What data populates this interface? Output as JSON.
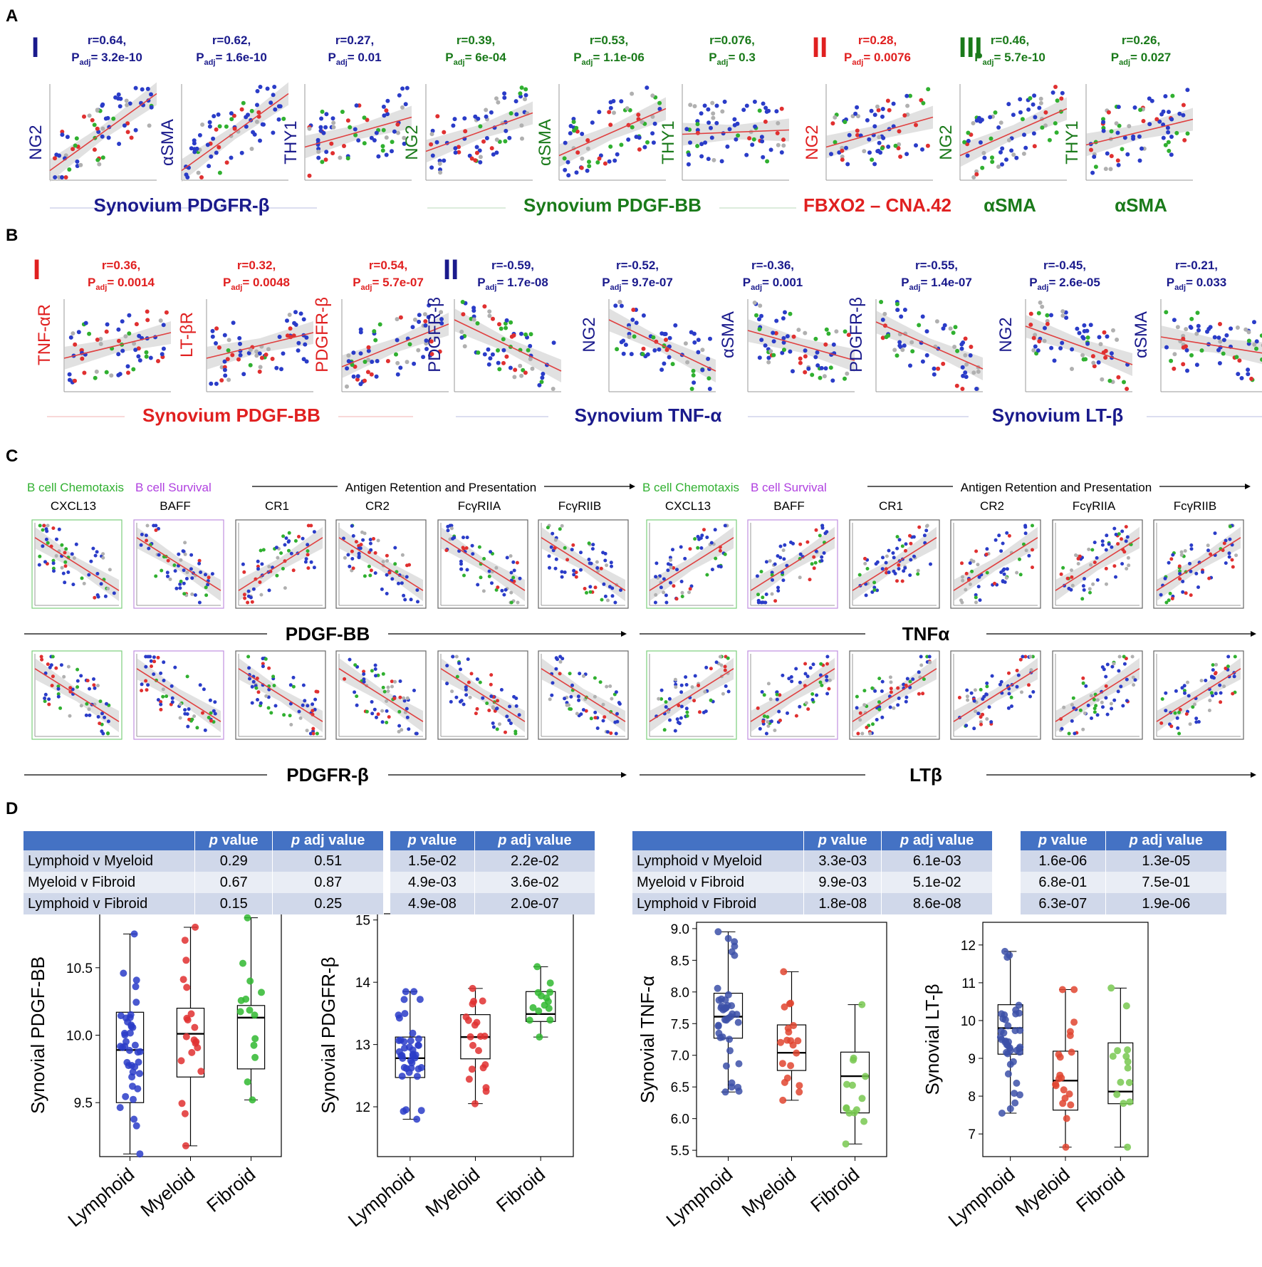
{
  "panel_labels": [
    "A",
    "B",
    "C",
    "D"
  ],
  "panelA": {
    "groups": [
      {
        "roman": "I",
        "color": "#1a1a8c",
        "xlabel": "Synovium PDGFR-β",
        "xlabel_color": "#1a1a8c",
        "plots": [
          {
            "ylabel": "NG2",
            "r": "r=0.64,",
            "padj": "3.2e-10",
            "color": "#1a1a8c"
          },
          {
            "ylabel": "αSMA",
            "r": "r=0.62,",
            "padj": "1.6e-10",
            "color": "#1a1a8c"
          },
          {
            "ylabel": "THY1",
            "r": "r=0.27,",
            "padj": "0.01",
            "color": "#1a1a8c"
          }
        ]
      },
      {
        "roman": "",
        "color": "#1a7a1a",
        "xlabel": "Synovium PDGF-BB",
        "xlabel_color": "#1a7a1a",
        "plots": [
          {
            "ylabel": "NG2",
            "r": "r=0.39,",
            "padj": "6e-04",
            "color": "#1a7a1a"
          },
          {
            "ylabel": "αSMA",
            "r": "r=0.53,",
            "padj": "1.1e-06",
            "color": "#1a7a1a"
          },
          {
            "ylabel": "THY1",
            "r": "r=0.076,",
            "padj": "0.3",
            "color": "#1a7a1a"
          }
        ]
      },
      {
        "roman": "II",
        "color": "#e02020",
        "xlabel": "FBXO2 – CNA.42",
        "xlabel_color": "#e02020",
        "plots": [
          {
            "ylabel": "NG2",
            "r": "r=0.28,",
            "padj": "0.0076",
            "color": "#e02020"
          }
        ]
      },
      {
        "roman": "III",
        "color": "#1a7a1a",
        "xlabel": "αSMA",
        "xlabel_color": "#1a7a1a",
        "plots": [
          {
            "ylabel": "NG2",
            "r": "r=0.46,",
            "padj": "5.7e-10",
            "color": "#1a7a1a"
          },
          {
            "ylabel": "THY1",
            "r": "r=0.26,",
            "padj": "0.027",
            "color": "#1a7a1a"
          }
        ]
      }
    ],
    "extra_xlabel": "αSMA"
  },
  "panelB": {
    "groups": [
      {
        "roman": "I",
        "color": "#e02020",
        "xlabel": "Synovium PDGF-BB",
        "plots": [
          {
            "ylabel": "TNF-αR",
            "r": "r=0.36,",
            "padj": "0.0014"
          },
          {
            "ylabel": "LT-βR",
            "r": "r=0.32,",
            "padj": "0.0048"
          },
          {
            "ylabel": "PDGFR-β",
            "r": "r=0.54,",
            "padj": "5.7e-07"
          }
        ]
      },
      {
        "roman": "II",
        "color": "#1a1a8c",
        "xlabel": "Synovium TNF-α",
        "plots": [
          {
            "ylabel": "PDGFR-β",
            "r": "r=-0.59,",
            "padj": "1.7e-08"
          },
          {
            "ylabel": "NG2",
            "r": "r=-0.52,",
            "padj": "9.7e-07"
          },
          {
            "ylabel": "αSMA",
            "r": "r=-0.36,",
            "padj": "0.001"
          }
        ]
      },
      {
        "roman": "",
        "color": "#1a1a8c",
        "xlabel": "Synovium LT-β",
        "plots": [
          {
            "ylabel": "PDGFR-β",
            "r": "r=-0.55,",
            "padj": "1.4e-07"
          },
          {
            "ylabel": "NG2",
            "r": "r=-0.45,",
            "padj": "2.6e-05"
          },
          {
            "ylabel": "αSMA",
            "r": "r=-0.21,",
            "padj": "0.033"
          }
        ]
      }
    ]
  },
  "panelC": {
    "header_left": {
      "chemotaxis": "B cell Chemotaxis",
      "survival": "B cell Survival",
      "antigen": "Antigen Retention and Presentation"
    },
    "header_right": {
      "chemotaxis": "B cell Chemotaxis",
      "survival": "B cell Survival",
      "antigen": "Antigen Retention and Presentation"
    },
    "columns": [
      "CXCL13",
      "BAFF",
      "CR1",
      "CR2",
      "FcγRIIA",
      "FcγRIIB"
    ],
    "row_labels": {
      "top_left": "PDGF-BB",
      "top_right": "TNFα",
      "bottom_left": "PDGFR-β",
      "bottom_right": "LTβ"
    },
    "slopes": {
      "top_left": [
        -1,
        -1,
        1,
        -1,
        -1,
        -1
      ],
      "top_right": [
        1,
        1,
        1,
        1,
        1,
        1
      ],
      "bottom_left": [
        -1,
        -1,
        -1,
        -1,
        -1,
        -1
      ],
      "bottom_right": [
        1,
        1,
        1,
        1,
        1,
        1
      ]
    }
  },
  "panelD": {
    "tables": [
      {
        "headers": [
          "",
          "p value",
          "p adj value"
        ],
        "rows": [
          [
            "Lymphoid v Myeloid",
            "0.29",
            "0.51"
          ],
          [
            "Myeloid v Fibroid",
            "0.67",
            "0.87"
          ],
          [
            "Lymphoid v Fibroid",
            "0.15",
            "0.25"
          ]
        ]
      },
      {
        "headers": [
          "p value",
          "p adj value"
        ],
        "rows": [
          [
            "1.5e-02",
            "2.2e-02"
          ],
          [
            "4.9e-03",
            "3.6e-02"
          ],
          [
            "4.9e-08",
            "2.0e-07"
          ]
        ]
      },
      {
        "headers": [
          "",
          "p value",
          "p adj value"
        ],
        "rows": [
          [
            "Lymphoid v Myeloid",
            "3.3e-03",
            "6.1e-03"
          ],
          [
            "Myeloid v Fibroid",
            "9.9e-03",
            "5.1e-02"
          ],
          [
            "Lymphoid v Fibroid",
            "1.8e-08",
            "8.6e-08"
          ]
        ]
      },
      {
        "headers": [
          "p value",
          "p adj value"
        ],
        "rows": [
          [
            "1.6e-06",
            "1.3e-05"
          ],
          [
            "6.8e-01",
            "7.5e-01"
          ],
          [
            "6.3e-07",
            "1.9e-06"
          ]
        ]
      }
    ]
  },
  "chart_data": [
    {
      "type": "box",
      "ylabel": "Synovial PDGF-BB",
      "categories": [
        "Lymphoid",
        "Myeloid",
        "Fibroid"
      ],
      "ylim": [
        9.1,
        10.9
      ],
      "yticks": [
        9.5,
        10.0,
        10.5
      ],
      "boxes": [
        {
          "min": 9.12,
          "q1": 9.5,
          "median": 9.89,
          "q3": 10.17,
          "max": 10.75
        },
        {
          "min": 9.18,
          "q1": 9.69,
          "median": 10.01,
          "q3": 10.2,
          "max": 10.8
        },
        {
          "min": 9.52,
          "q1": 9.75,
          "median": 10.13,
          "q3": 10.22,
          "max": 10.87
        }
      ],
      "colors": [
        "#2a3cc8",
        "#e03030",
        "#30b830"
      ]
    },
    {
      "type": "box",
      "ylabel": "Synovial PDGFR-β",
      "categories": [
        "Lymphoid",
        "Myeloid",
        "Fibroid"
      ],
      "ylim": [
        11.2,
        15.1
      ],
      "yticks": [
        12,
        13,
        14,
        15
      ],
      "boxes": [
        {
          "min": 11.8,
          "q1": 12.47,
          "median": 12.78,
          "q3": 13.12,
          "max": 13.85
        },
        {
          "min": 12.05,
          "q1": 12.77,
          "median": 13.12,
          "q3": 13.48,
          "max": 13.9
        },
        {
          "min": 13.12,
          "q1": 13.37,
          "median": 13.49,
          "q3": 13.85,
          "max": 14.25
        }
      ],
      "colors": [
        "#2a3cc8",
        "#e03030",
        "#30b830"
      ]
    },
    {
      "type": "box",
      "ylabel": "Synovial TNF-α",
      "categories": [
        "Lymphoid",
        "Myeloid",
        "Fibroid"
      ],
      "ylim": [
        5.4,
        9.1
      ],
      "yticks": [
        5.5,
        6.0,
        6.5,
        7.0,
        7.5,
        8.0,
        8.5,
        9.0
      ],
      "boxes": [
        {
          "min": 6.42,
          "q1": 7.27,
          "median": 7.61,
          "q3": 7.98,
          "max": 8.95
        },
        {
          "min": 6.29,
          "q1": 6.76,
          "median": 7.04,
          "q3": 7.48,
          "max": 8.32
        },
        {
          "min": 5.6,
          "q1": 6.09,
          "median": 6.67,
          "q3": 7.05,
          "max": 7.8
        }
      ],
      "colors": [
        "#3c50a8",
        "#e04530",
        "#78c850"
      ]
    },
    {
      "type": "box",
      "ylabel": "Synovial LT-β",
      "categories": [
        "Lymphoid",
        "Myeloid",
        "Fibroid"
      ],
      "ylim": [
        6.4,
        12.6
      ],
      "yticks": [
        7,
        8,
        9,
        10,
        11,
        12
      ],
      "boxes": [
        {
          "min": 7.55,
          "q1": 9.11,
          "median": 9.8,
          "q3": 10.42,
          "max": 11.83
        },
        {
          "min": 6.65,
          "q1": 7.63,
          "median": 8.41,
          "q3": 9.19,
          "max": 10.82
        },
        {
          "min": 6.65,
          "q1": 7.8,
          "median": 8.12,
          "q3": 9.41,
          "max": 10.86
        }
      ],
      "colors": [
        "#3c50a8",
        "#e04530",
        "#78c850"
      ]
    }
  ]
}
